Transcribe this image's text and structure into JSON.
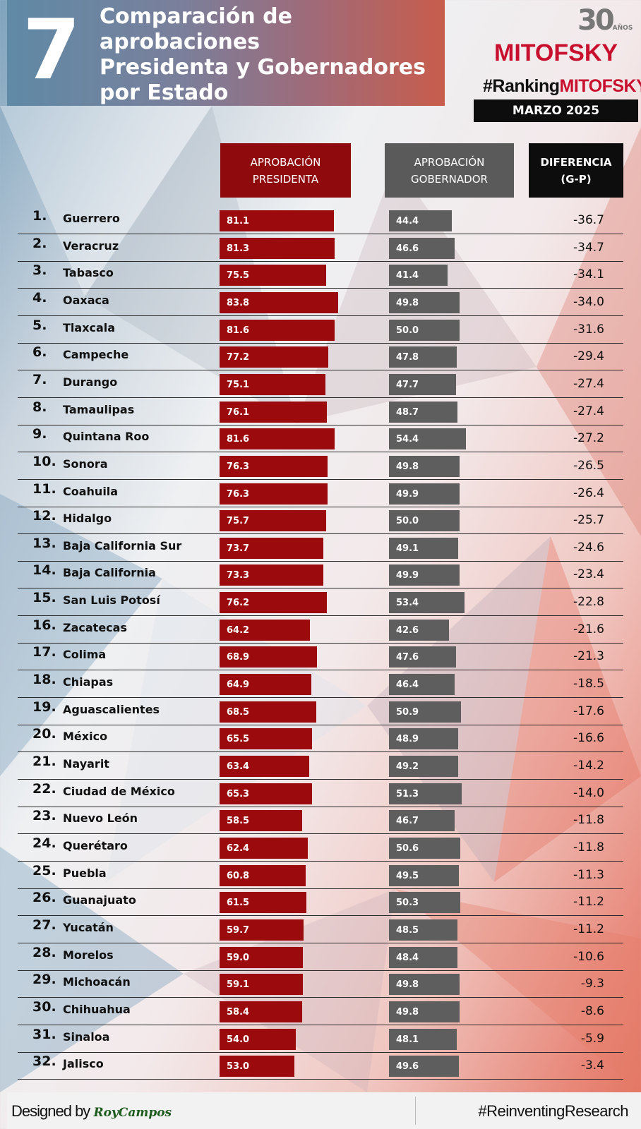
{
  "header": {
    "number": "7",
    "title_lines": [
      "Comparación de aprobaciones",
      "Presidenta y Gobernadores",
      "por Estado"
    ],
    "logo_anios": "30",
    "logo_anios_label": "AÑOS",
    "brand": "MITOFSKY",
    "hashtag_a": "#Ranking",
    "hashtag_b": "MITOFSKY",
    "period": "MARZO 2025"
  },
  "columns": {
    "presidenta": "APROBACIÓN\nPRESIDENTA",
    "gobernador": "APROBACIÓN\nGOBERNADOR",
    "diferencia": "DIFERENCIA\n(G-P)"
  },
  "colors": {
    "presidenta": "#9b0b0d",
    "gobernador": "#5e5e5e",
    "brand": "#c8102e"
  },
  "chart_data": {
    "type": "bar",
    "title": "Comparación de aprobaciones Presidenta y Gobernadores por Estado",
    "series_names": [
      "APROBACIÓN PRESIDENTA",
      "APROBACIÓN GOBERNADOR",
      "DIFERENCIA (G-P)"
    ],
    "rows": [
      {
        "rank": "1.",
        "state": "Guerrero",
        "p": 81.1,
        "g": 44.4,
        "d": "-36.7"
      },
      {
        "rank": "2.",
        "state": "Veracruz",
        "p": 81.3,
        "g": 46.6,
        "d": "-34.7"
      },
      {
        "rank": "3.",
        "state": "Tabasco",
        "p": 75.5,
        "g": 41.4,
        "d": "-34.1"
      },
      {
        "rank": "4.",
        "state": "Oaxaca",
        "p": 83.8,
        "g": 49.8,
        "d": "-34.0"
      },
      {
        "rank": "5.",
        "state": "Tlaxcala",
        "p": 81.6,
        "g": 50.0,
        "d": "-31.6"
      },
      {
        "rank": "6.",
        "state": "Campeche",
        "p": 77.2,
        "g": 47.8,
        "d": "-29.4"
      },
      {
        "rank": "7.",
        "state": "Durango",
        "p": 75.1,
        "g": 47.7,
        "d": "-27.4"
      },
      {
        "rank": "8.",
        "state": "Tamaulipas",
        "p": 76.1,
        "g": 48.7,
        "d": "-27.4"
      },
      {
        "rank": "9.",
        "state": "Quintana Roo",
        "p": 81.6,
        "g": 54.4,
        "d": "-27.2"
      },
      {
        "rank": "10.",
        "state": "Sonora",
        "p": 76.3,
        "g": 49.8,
        "d": "-26.5"
      },
      {
        "rank": "11.",
        "state": "Coahuila",
        "p": 76.3,
        "g": 49.9,
        "d": "-26.4"
      },
      {
        "rank": "12.",
        "state": "Hidalgo",
        "p": 75.7,
        "g": 50.0,
        "d": "-25.7"
      },
      {
        "rank": "13.",
        "state": "Baja California Sur",
        "p": 73.7,
        "g": 49.1,
        "d": "-24.6"
      },
      {
        "rank": "14.",
        "state": "Baja California",
        "p": 73.3,
        "g": 49.9,
        "d": "-23.4"
      },
      {
        "rank": "15.",
        "state": "San Luis Potosí",
        "p": 76.2,
        "g": 53.4,
        "d": "-22.8"
      },
      {
        "rank": "16.",
        "state": "Zacatecas",
        "p": 64.2,
        "g": 42.6,
        "d": "-21.6"
      },
      {
        "rank": "17.",
        "state": "Colima",
        "p": 68.9,
        "g": 47.6,
        "d": "-21.3"
      },
      {
        "rank": "18.",
        "state": "Chiapas",
        "p": 64.9,
        "g": 46.4,
        "d": "-18.5"
      },
      {
        "rank": "19.",
        "state": "Aguascalientes",
        "p": 68.5,
        "g": 50.9,
        "d": "-17.6"
      },
      {
        "rank": "20.",
        "state": "México",
        "p": 65.5,
        "g": 48.9,
        "d": "-16.6"
      },
      {
        "rank": "21.",
        "state": "Nayarit",
        "p": 63.4,
        "g": 49.2,
        "d": "-14.2"
      },
      {
        "rank": "22.",
        "state": "Ciudad de México",
        "p": 65.3,
        "g": 51.3,
        "d": "-14.0"
      },
      {
        "rank": "23.",
        "state": "Nuevo León",
        "p": 58.5,
        "g": 46.7,
        "d": "-11.8"
      },
      {
        "rank": "24.",
        "state": "Querétaro",
        "p": 62.4,
        "g": 50.6,
        "d": "-11.8"
      },
      {
        "rank": "25.",
        "state": "Puebla",
        "p": 60.8,
        "g": 49.5,
        "d": "-11.3"
      },
      {
        "rank": "26.",
        "state": "Guanajuato",
        "p": 61.5,
        "g": 50.3,
        "d": "-11.2"
      },
      {
        "rank": "27.",
        "state": "Yucatán",
        "p": 59.7,
        "g": 48.5,
        "d": "-11.2"
      },
      {
        "rank": "28.",
        "state": "Morelos",
        "p": 59.0,
        "g": 48.4,
        "d": "-10.6"
      },
      {
        "rank": "29.",
        "state": "Michoacán",
        "p": 59.1,
        "g": 49.8,
        "d": "-9.3"
      },
      {
        "rank": "30.",
        "state": "Chihuahua",
        "p": 58.4,
        "g": 49.8,
        "d": "-8.6"
      },
      {
        "rank": "31.",
        "state": "Sinaloa",
        "p": 54.0,
        "g": 48.1,
        "d": "-5.9"
      },
      {
        "rank": "32.",
        "state": "Jalisco",
        "p": 53.0,
        "g": 49.6,
        "d": "-3.4"
      }
    ]
  },
  "footer": {
    "designed_by": "Designed by",
    "designer": "RoyCampos",
    "hashtag": "#ReinventingResearch"
  }
}
